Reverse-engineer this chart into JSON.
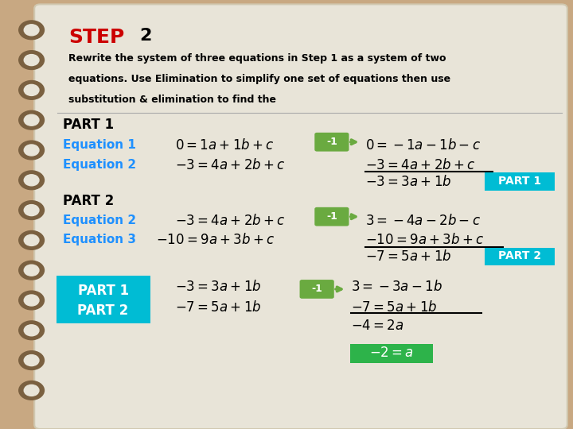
{
  "bg_color": "#c8a882",
  "page_color": "#e8e4d8",
  "title_step": "STEP",
  "title_num": "2",
  "title_color": "#cc0000",
  "title_num_color": "#000000",
  "subtitle_lines": [
    "Rewrite the system of three equations in Step 1 as a system of two",
    "equations. Use Elimination to simplify one set of equations then use",
    "substitution & elimination to find the"
  ],
  "label_color": "#1e90ff",
  "arrow_color": "#6aaa40",
  "cyan_box_color": "#00bcd4",
  "green_box_color": "#2db34a",
  "spiral_color": "#7a6040"
}
